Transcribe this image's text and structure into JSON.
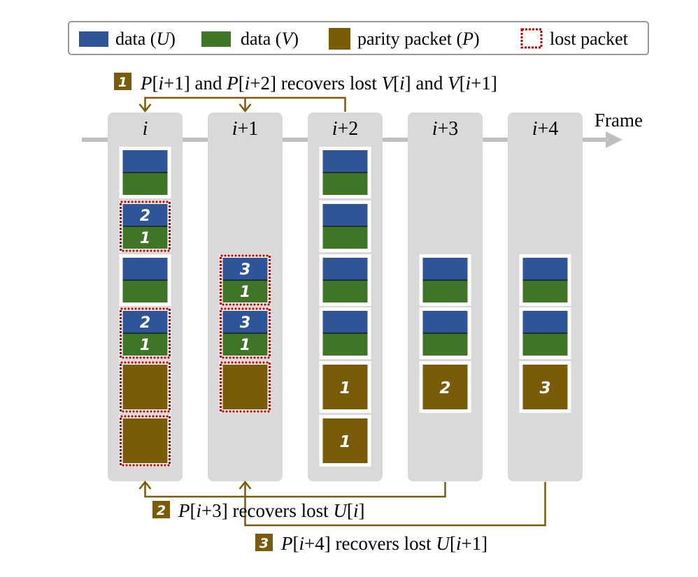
{
  "colors": {
    "data_u": "#2E5597",
    "data_v": "#3E7527",
    "parity": "#7A5B0A",
    "lost_border": "#C00000",
    "column_bg": "#D9D9D9",
    "arrow": "#7A5B0A",
    "frame_axis": "#BFBFBF"
  },
  "legend": {
    "items": [
      {
        "kind": "data-u",
        "label": "data (",
        "var": "U",
        "suffix": ")"
      },
      {
        "kind": "data-v",
        "label": "data (",
        "var": "V",
        "suffix": ")"
      },
      {
        "kind": "parity",
        "label": "parity packet (",
        "var": "P",
        "suffix": ")"
      },
      {
        "kind": "lost",
        "label": "lost packet",
        "var": "",
        "suffix": ""
      }
    ]
  },
  "frame_axis_label": "Frame",
  "columns": [
    {
      "label": "i",
      "label_rest": "",
      "packets": [
        {
          "type": "data",
          "lost": false,
          "u_mark": "",
          "v_mark": ""
        },
        {
          "type": "data",
          "lost": true,
          "u_mark": "2",
          "v_mark": "1"
        },
        {
          "type": "data",
          "lost": false,
          "u_mark": "",
          "v_mark": ""
        },
        {
          "type": "data",
          "lost": true,
          "u_mark": "2",
          "v_mark": "1"
        },
        {
          "type": "parity",
          "lost": true,
          "mark": ""
        },
        {
          "type": "parity",
          "lost": true,
          "mark": ""
        }
      ]
    },
    {
      "label": "i",
      "label_rest": "+1",
      "packets": [
        null,
        null,
        {
          "type": "data",
          "lost": true,
          "u_mark": "3",
          "v_mark": "1"
        },
        {
          "type": "data",
          "lost": true,
          "u_mark": "3",
          "v_mark": "1"
        },
        {
          "type": "parity",
          "lost": true,
          "mark": ""
        }
      ]
    },
    {
      "label": "i",
      "label_rest": "+2",
      "packets": [
        {
          "type": "data",
          "lost": false,
          "u_mark": "",
          "v_mark": ""
        },
        {
          "type": "data",
          "lost": false,
          "u_mark": "",
          "v_mark": ""
        },
        {
          "type": "data",
          "lost": false,
          "u_mark": "",
          "v_mark": ""
        },
        {
          "type": "data",
          "lost": false,
          "u_mark": "",
          "v_mark": ""
        },
        {
          "type": "parity",
          "lost": false,
          "mark": "1"
        },
        {
          "type": "parity",
          "lost": false,
          "mark": "1"
        }
      ]
    },
    {
      "label": "i",
      "label_rest": "+3",
      "packets": [
        null,
        null,
        {
          "type": "data",
          "lost": false,
          "u_mark": "",
          "v_mark": ""
        },
        {
          "type": "data",
          "lost": false,
          "u_mark": "",
          "v_mark": ""
        },
        {
          "type": "parity",
          "lost": false,
          "mark": "2"
        }
      ]
    },
    {
      "label": "i",
      "label_rest": "+4",
      "packets": [
        null,
        null,
        {
          "type": "data",
          "lost": false,
          "u_mark": "",
          "v_mark": ""
        },
        {
          "type": "data",
          "lost": false,
          "u_mark": "",
          "v_mark": ""
        },
        {
          "type": "parity",
          "lost": false,
          "mark": "3"
        }
      ]
    }
  ],
  "annotations": [
    {
      "badge": "1",
      "parts": [
        [
          "P",
          "i"
        ],
        [
          "[",
          ""
        ],
        [
          "i",
          "i"
        ],
        [
          "+1] and ",
          ""
        ],
        [
          "P",
          "i"
        ],
        [
          "[",
          ""
        ],
        [
          "i",
          "i"
        ],
        [
          "+2] recovers lost ",
          ""
        ],
        [
          "V",
          "i"
        ],
        [
          "[",
          ""
        ],
        [
          "i",
          "i"
        ],
        [
          "] and ",
          ""
        ],
        [
          "V",
          "i"
        ],
        [
          "[",
          ""
        ],
        [
          "i",
          "i"
        ],
        [
          "+1]",
          ""
        ]
      ]
    },
    {
      "badge": "2",
      "parts": [
        [
          "P",
          "i"
        ],
        [
          "[",
          ""
        ],
        [
          "i",
          "i"
        ],
        [
          "+3] recovers lost ",
          ""
        ],
        [
          "U",
          "i"
        ],
        [
          "[",
          ""
        ],
        [
          "i",
          "i"
        ],
        [
          "]",
          ""
        ]
      ]
    },
    {
      "badge": "3",
      "parts": [
        [
          "P",
          "i"
        ],
        [
          "[",
          ""
        ],
        [
          "i",
          "i"
        ],
        [
          "+4] recovers lost ",
          ""
        ],
        [
          "U",
          "i"
        ],
        [
          "[",
          ""
        ],
        [
          "i",
          "i"
        ],
        [
          "+1]",
          ""
        ]
      ]
    }
  ]
}
